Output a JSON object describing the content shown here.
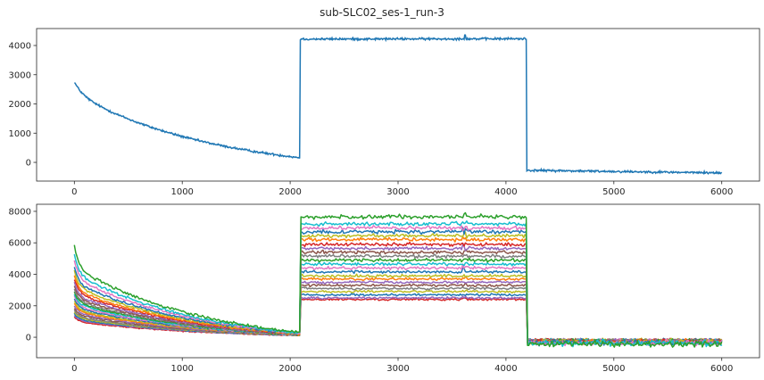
{
  "figure": {
    "title": "sub-SLC02_ses-1_run-3"
  },
  "chart_data": [
    {
      "type": "line",
      "title": "",
      "xlabel": "",
      "ylabel": "",
      "xlim": [
        -350,
        6350
      ],
      "ylim": [
        -640,
        4580
      ],
      "x_ticks": [
        0,
        1000,
        2000,
        3000,
        4000,
        5000,
        6000
      ],
      "y_ticks": [
        0,
        1000,
        2000,
        3000,
        4000
      ],
      "grid": false,
      "n_points": 6000,
      "series": [
        {
          "color": "#1f77b4",
          "segments": [
            {
              "x_start": 0,
              "x_end": 2090,
              "shape": "decay",
              "start": 2750,
              "end": 160
            },
            {
              "x_start": 2090,
              "x_end": 4190,
              "shape": "flat",
              "start": 4220,
              "end": 4230
            },
            {
              "x_start": 4190,
              "x_end": 6000,
              "shape": "flat",
              "start": -270,
              "end": -360
            }
          ],
          "noise": 18,
          "spike": {
            "x": 3620,
            "value": 4360
          }
        }
      ]
    },
    {
      "type": "line",
      "title": "",
      "xlabel": "",
      "ylabel": "",
      "xlim": [
        -350,
        6350
      ],
      "ylim": [
        -1300,
        8450
      ],
      "x_ticks": [
        0,
        1000,
        2000,
        3000,
        4000,
        5000,
        6000
      ],
      "y_ticks": [
        0,
        2000,
        4000,
        6000,
        8000
      ],
      "grid": false,
      "n_points": 6000,
      "series": [
        {
          "color": "#2ca02c",
          "start": 5850,
          "end": 300,
          "plateau": 7650,
          "tail": -420
        },
        {
          "color": "#17becf",
          "start": 5300,
          "end": 260,
          "plateau": 7200,
          "tail": -380
        },
        {
          "color": "#e377c2",
          "start": 4900,
          "end": 250,
          "plateau": 6950,
          "tail": -350
        },
        {
          "color": "#1f77b4",
          "start": 4500,
          "end": 240,
          "plateau": 6700,
          "tail": -330
        },
        {
          "color": "#bcbd22",
          "start": 4200,
          "end": 230,
          "plateau": 6450,
          "tail": -320
        },
        {
          "color": "#ff7f0e",
          "start": 3900,
          "end": 220,
          "plateau": 6200,
          "tail": -300
        },
        {
          "color": "#d62728",
          "start": 3700,
          "end": 210,
          "plateau": 5900,
          "tail": -290
        },
        {
          "color": "#9467bd",
          "start": 3450,
          "end": 200,
          "plateau": 5650,
          "tail": -280
        },
        {
          "color": "#8c564b",
          "start": 3250,
          "end": 190,
          "plateau": 5400,
          "tail": -270
        },
        {
          "color": "#7f7f7f",
          "start": 3050,
          "end": 180,
          "plateau": 5150,
          "tail": -260
        },
        {
          "color": "#2ca02c",
          "start": 2900,
          "end": 175,
          "plateau": 4900,
          "tail": -250
        },
        {
          "color": "#17becf",
          "start": 2750,
          "end": 170,
          "plateau": 4650,
          "tail": -245
        },
        {
          "color": "#e377c2",
          "start": 2600,
          "end": 165,
          "plateau": 4400,
          "tail": -240
        },
        {
          "color": "#1f77b4",
          "start": 2450,
          "end": 160,
          "plateau": 4150,
          "tail": -235
        },
        {
          "color": "#bcbd22",
          "start": 2300,
          "end": 155,
          "plateau": 3900,
          "tail": -230
        },
        {
          "color": "#ff7f0e",
          "start": 2150,
          "end": 150,
          "plateau": 3700,
          "tail": -225
        },
        {
          "color": "#9467bd",
          "start": 2000,
          "end": 145,
          "plateau": 3500,
          "tail": -220
        },
        {
          "color": "#8c564b",
          "start": 1850,
          "end": 140,
          "plateau": 3300,
          "tail": -215
        },
        {
          "color": "#7f7f7f",
          "start": 1700,
          "end": 135,
          "plateau": 3100,
          "tail": -210
        },
        {
          "color": "#bcbd22",
          "start": 1600,
          "end": 130,
          "plateau": 2900,
          "tail": -205
        },
        {
          "color": "#1f77b4",
          "start": 1500,
          "end": 125,
          "plateau": 2700,
          "tail": -200
        },
        {
          "color": "#9467bd",
          "start": 1400,
          "end": 120,
          "plateau": 2500,
          "tail": -195
        },
        {
          "color": "#d62728",
          "start": 1300,
          "end": 110,
          "plateau": 2400,
          "tail": -190
        }
      ],
      "step_up_x": 2090,
      "step_down_x": 4190,
      "spike_x": 3620
    }
  ]
}
